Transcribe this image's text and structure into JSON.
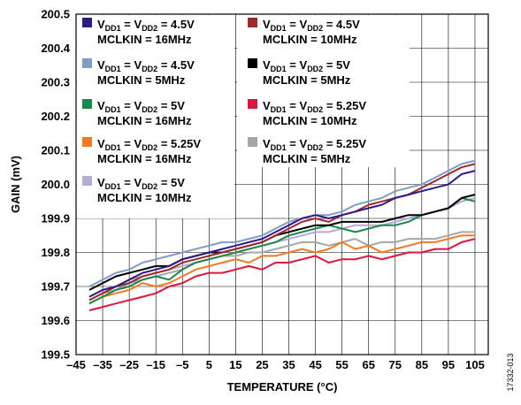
{
  "chart_data": {
    "type": "line",
    "xlabel": "TEMPERATURE (°C)",
    "ylabel": "GAIN (mV)",
    "xlim": [
      -45,
      110
    ],
    "ylim": [
      199.5,
      200.5
    ],
    "x_ticks": [
      "–45",
      "–35",
      "–25",
      "–15",
      "–5",
      "5",
      "15",
      "25",
      "35",
      "45",
      "55",
      "65",
      "75",
      "85",
      "95",
      "105"
    ],
    "y_ticks": [
      "199.5",
      "199.6",
      "199.7",
      "199.8",
      "199.9",
      "200.0",
      "200.1",
      "200.2",
      "200.3",
      "200.4",
      "200.5"
    ],
    "grid": true,
    "legend_placement": "top-left",
    "figure_id": "17332-013",
    "x": [
      -40,
      -35,
      -30,
      -25,
      -20,
      -15,
      -10,
      -5,
      0,
      5,
      10,
      15,
      20,
      25,
      30,
      35,
      40,
      45,
      50,
      55,
      60,
      65,
      70,
      75,
      80,
      85,
      90,
      95,
      100,
      105
    ],
    "series": [
      {
        "vdd": "4.5V",
        "mclk": "MCLKIN = 16MHz",
        "color": "#2e1a87",
        "values": [
          199.67,
          199.69,
          199.7,
          199.72,
          199.74,
          199.75,
          199.76,
          199.78,
          199.79,
          199.8,
          199.81,
          199.82,
          199.83,
          199.84,
          199.86,
          199.88,
          199.9,
          199.91,
          199.9,
          199.91,
          199.92,
          199.93,
          199.94,
          199.96,
          199.97,
          199.98,
          199.99,
          200.0,
          200.03,
          200.04
        ]
      },
      {
        "vdd": "4.5V",
        "mclk": "MCLKIN = 10MHz",
        "color": "#9e2a2b",
        "values": [
          199.66,
          199.68,
          199.7,
          199.71,
          199.73,
          199.74,
          199.75,
          199.77,
          199.78,
          199.79,
          199.8,
          199.81,
          199.82,
          199.83,
          199.85,
          199.87,
          199.89,
          199.9,
          199.89,
          199.91,
          199.92,
          199.94,
          199.95,
          199.96,
          199.97,
          199.99,
          200.01,
          200.03,
          200.05,
          200.06
        ]
      },
      {
        "vdd": "4.5V",
        "mclk": "MCLKIN = 5MHz",
        "color": "#7f9cc6",
        "values": [
          199.7,
          199.72,
          199.74,
          199.75,
          199.77,
          199.78,
          199.79,
          199.8,
          199.81,
          199.82,
          199.83,
          199.83,
          199.84,
          199.85,
          199.87,
          199.89,
          199.9,
          199.91,
          199.91,
          199.92,
          199.94,
          199.95,
          199.96,
          199.98,
          199.99,
          200.0,
          200.02,
          200.04,
          200.06,
          200.07
        ]
      },
      {
        "vdd": "5V",
        "mclk": "MCLKIN = 5MHz",
        "color": "#000000",
        "values": [
          199.69,
          199.71,
          199.73,
          199.74,
          199.75,
          199.76,
          199.76,
          199.78,
          199.79,
          199.8,
          199.8,
          199.81,
          199.82,
          199.83,
          199.85,
          199.86,
          199.87,
          199.88,
          199.88,
          199.89,
          199.89,
          199.89,
          199.89,
          199.9,
          199.91,
          199.91,
          199.92,
          199.93,
          199.96,
          199.97
        ]
      },
      {
        "vdd": "5V",
        "mclk": "MCLKIN = 16MHz",
        "color": "#1a8a4a",
        "values": [
          199.65,
          199.67,
          199.69,
          199.7,
          199.72,
          199.73,
          199.72,
          199.75,
          199.77,
          199.78,
          199.79,
          199.8,
          199.81,
          199.82,
          199.83,
          199.85,
          199.86,
          199.87,
          199.88,
          199.87,
          199.86,
          199.87,
          199.88,
          199.88,
          199.89,
          199.91,
          199.92,
          199.93,
          199.96,
          199.95
        ]
      },
      {
        "vdd": "5.25V",
        "mclk": "MCLKIN = 10MHz",
        "color": "#e0143c",
        "values": [
          199.63,
          199.64,
          199.65,
          199.66,
          199.67,
          199.68,
          199.7,
          199.71,
          199.73,
          199.74,
          199.74,
          199.75,
          199.76,
          199.75,
          199.77,
          199.77,
          199.78,
          199.79,
          199.77,
          199.78,
          199.78,
          199.79,
          199.78,
          199.79,
          199.8,
          199.8,
          199.81,
          199.81,
          199.83,
          199.84
        ]
      },
      {
        "vdd": "5.25V",
        "mclk": "MCLKIN = 16MHz",
        "color": "#f07b22",
        "values": [
          199.65,
          199.67,
          199.68,
          199.69,
          199.71,
          199.7,
          199.71,
          199.73,
          199.75,
          199.76,
          199.77,
          199.78,
          199.77,
          199.79,
          199.79,
          199.8,
          199.81,
          199.8,
          199.81,
          199.83,
          199.81,
          199.82,
          199.8,
          199.81,
          199.82,
          199.83,
          199.83,
          199.84,
          199.85,
          199.85
        ]
      },
      {
        "vdd": "5.25V",
        "mclk": "MCLKIN = 5MHz",
        "color": "#a6a6a6",
        "values": [
          199.66,
          199.68,
          199.69,
          199.71,
          199.72,
          199.73,
          199.74,
          199.75,
          199.77,
          199.78,
          199.79,
          199.79,
          199.8,
          199.8,
          199.81,
          199.82,
          199.83,
          199.83,
          199.82,
          199.83,
          199.84,
          199.82,
          199.83,
          199.83,
          199.84,
          199.84,
          199.84,
          199.85,
          199.86,
          199.86
        ]
      },
      {
        "vdd": "5V",
        "mclk": "MCLKIN = 10MHz",
        "color": "#b8a9d8",
        "values": [
          199.67,
          199.69,
          199.7,
          199.72,
          199.73,
          199.74,
          199.75,
          199.76,
          199.77,
          199.78,
          199.79,
          199.8,
          199.81,
          199.82,
          199.83,
          199.84,
          199.85,
          199.86,
          199.86,
          199.87,
          199.88,
          199.88,
          199.88,
          199.89,
          199.9,
          199.91,
          199.92,
          199.93,
          199.95,
          199.96
        ]
      }
    ],
    "legend": [
      {
        "series": 0,
        "col": 0,
        "row": 0
      },
      {
        "series": 1,
        "col": 1,
        "row": 0
      },
      {
        "series": 2,
        "col": 0,
        "row": 1
      },
      {
        "series": 3,
        "col": 1,
        "row": 1
      },
      {
        "series": 4,
        "col": 0,
        "row": 2
      },
      {
        "series": 5,
        "col": 1,
        "row": 2
      },
      {
        "series": 6,
        "col": 0,
        "row": 3
      },
      {
        "series": 7,
        "col": 1,
        "row": 3
      },
      {
        "series": 8,
        "col": 0,
        "row": 4
      }
    ]
  }
}
